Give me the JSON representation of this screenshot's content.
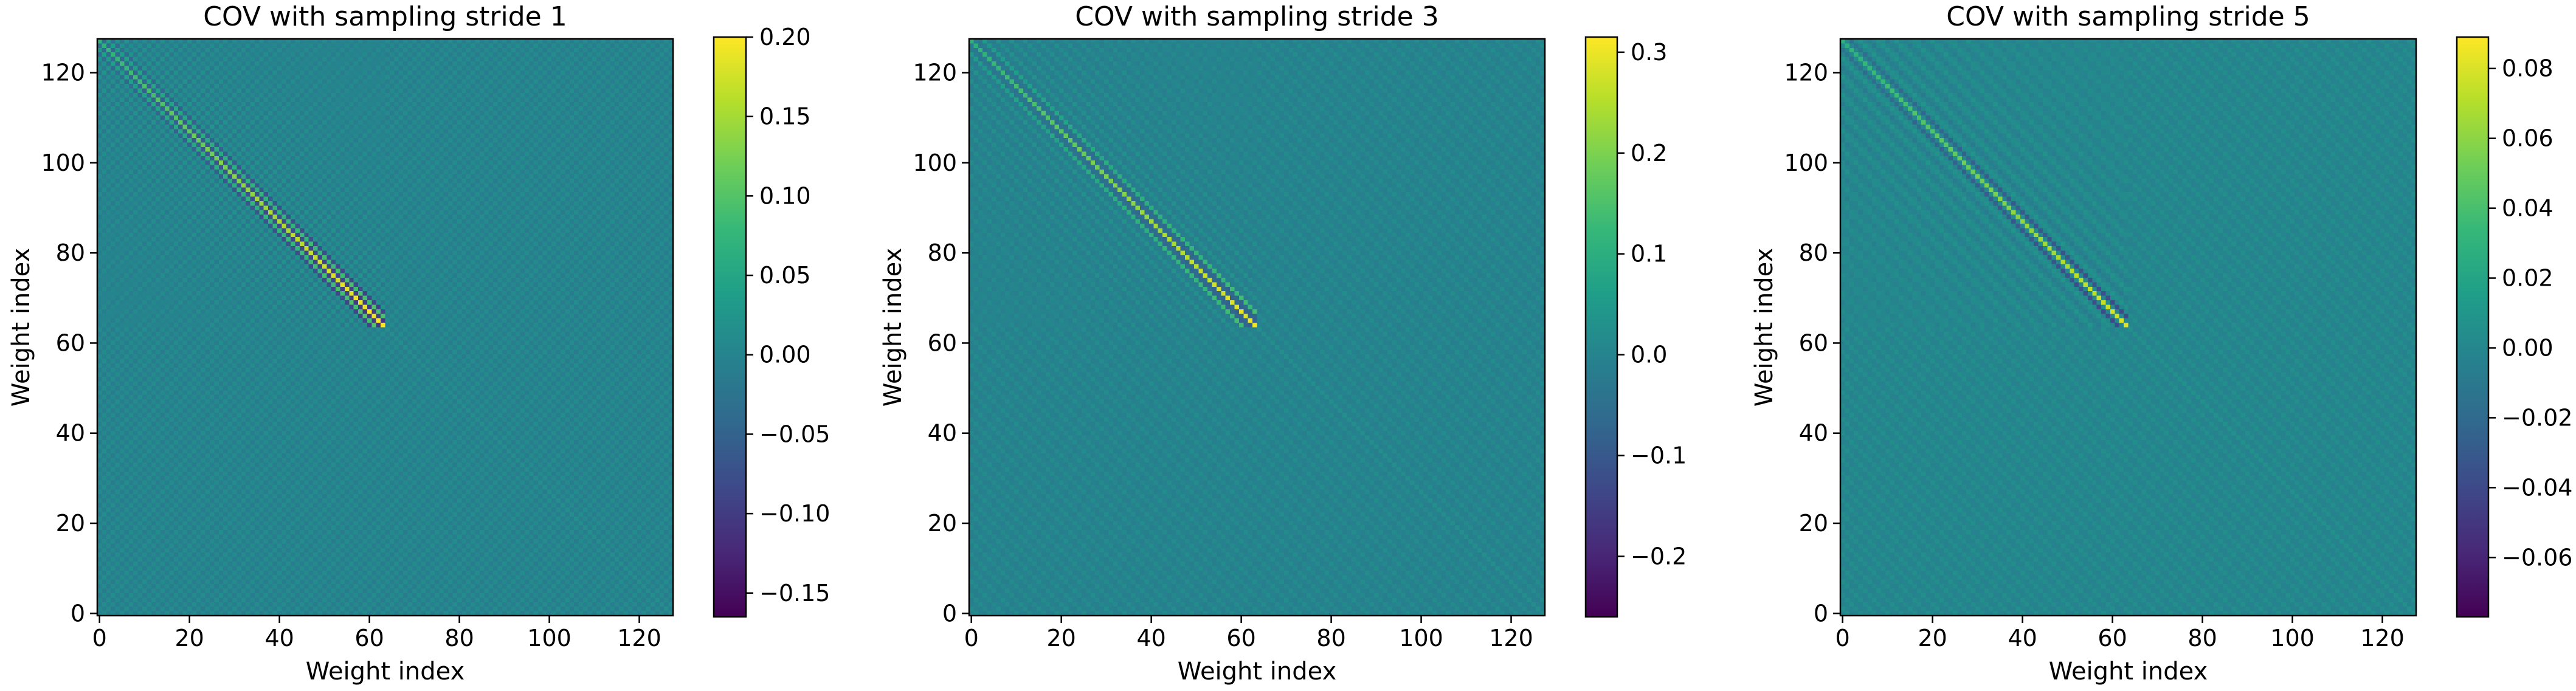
{
  "figure": {
    "colormap": [
      "#440154",
      "#482878",
      "#3e4989",
      "#31688e",
      "#26828e",
      "#1f9e89",
      "#35b779",
      "#6ece58",
      "#b5de2b",
      "#fde725"
    ],
    "axis_color": "#000000"
  },
  "chart_data": [
    {
      "type": "heatmap",
      "title": "COV with sampling stride 1",
      "xlabel": "Weight index",
      "ylabel": "Weight index",
      "xlim": [
        -0.5,
        127.5
      ],
      "ylim": [
        127.5,
        -0.5
      ],
      "x_ticks": [
        0,
        20,
        40,
        60,
        80,
        100,
        120
      ],
      "y_ticks": [
        0,
        20,
        40,
        60,
        80,
        100,
        120
      ],
      "matrix_size": 128,
      "block_size": 64,
      "sampling_stride": 1,
      "colorbar": {
        "min": -0.165,
        "max": 0.2,
        "ticks": [
          -0.15,
          -0.1,
          -0.05,
          0.0,
          0.05,
          0.1,
          0.15,
          0.2
        ],
        "tick_labels": [
          "−0.15",
          "−0.10",
          "−0.05",
          "0.00",
          "0.05",
          "0.10",
          "0.15",
          "0.20"
        ]
      },
      "diagonal_peak": 0.2,
      "background_value": 0.0
    },
    {
      "type": "heatmap",
      "title": "COV with sampling stride 3",
      "xlabel": "Weight index",
      "ylabel": "Weight index",
      "xlim": [
        -0.5,
        127.5
      ],
      "ylim": [
        127.5,
        -0.5
      ],
      "x_ticks": [
        0,
        20,
        40,
        60,
        80,
        100,
        120
      ],
      "y_ticks": [
        0,
        20,
        40,
        60,
        80,
        100,
        120
      ],
      "matrix_size": 128,
      "block_size": 64,
      "sampling_stride": 3,
      "colorbar": {
        "min": -0.26,
        "max": 0.315,
        "ticks": [
          -0.2,
          -0.1,
          0.0,
          0.1,
          0.2,
          0.3
        ],
        "tick_labels": [
          "−0.2",
          "−0.1",
          "0.0",
          "0.1",
          "0.2",
          "0.3"
        ]
      },
      "diagonal_peak": 0.3,
      "background_value": 0.0
    },
    {
      "type": "heatmap",
      "title": "COV with sampling stride 5",
      "xlabel": "Weight index",
      "ylabel": "Weight index",
      "xlim": [
        -0.5,
        127.5
      ],
      "ylim": [
        127.5,
        -0.5
      ],
      "x_ticks": [
        0,
        20,
        40,
        60,
        80,
        100,
        120
      ],
      "y_ticks": [
        0,
        20,
        40,
        60,
        80,
        100,
        120
      ],
      "matrix_size": 128,
      "block_size": 64,
      "sampling_stride": 5,
      "colorbar": {
        "min": -0.077,
        "max": 0.089,
        "ticks": [
          -0.06,
          -0.04,
          -0.02,
          0.0,
          0.02,
          0.04,
          0.06,
          0.08
        ],
        "tick_labels": [
          "−0.06",
          "−0.04",
          "−0.02",
          "0.00",
          "0.02",
          "0.04",
          "0.06",
          "0.08"
        ]
      },
      "diagonal_peak": 0.08,
      "background_value": 0.0
    }
  ]
}
